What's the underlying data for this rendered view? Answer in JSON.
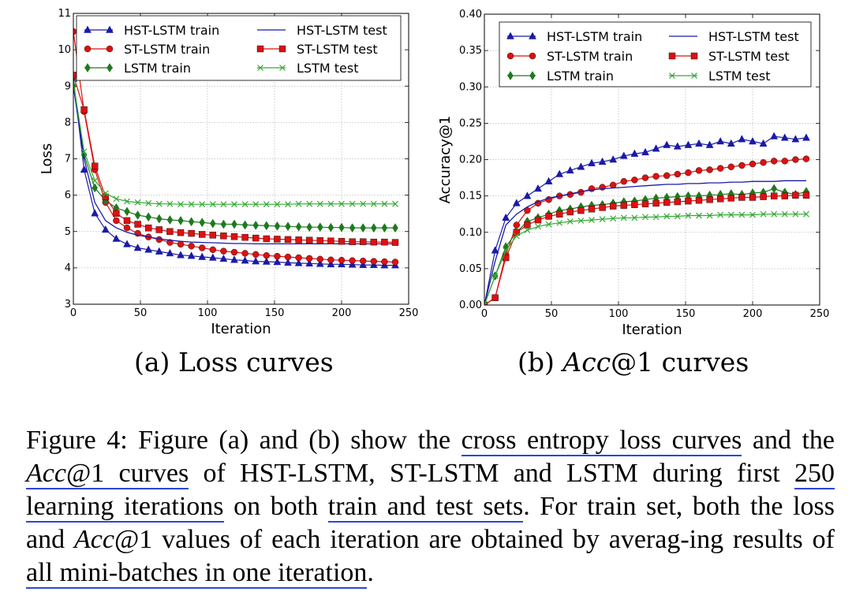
{
  "chart_data": [
    {
      "type": "line",
      "id": "loss",
      "title": "",
      "xlabel": "Iteration",
      "ylabel": "Loss",
      "xlim": [
        0,
        250
      ],
      "ylim": [
        3,
        11
      ],
      "xticks": [
        0,
        50,
        100,
        150,
        200,
        250
      ],
      "yticks": [
        3,
        4,
        5,
        6,
        7,
        8,
        9,
        10,
        11
      ],
      "grid": true,
      "legend_position": "top",
      "series": [
        {
          "name": "HST-LSTM train",
          "color": "#1a1aa8",
          "marker": "triangle",
          "line": "solid",
          "x": [
            0,
            8,
            16,
            24,
            32,
            40,
            48,
            56,
            64,
            72,
            80,
            88,
            96,
            104,
            112,
            120,
            128,
            136,
            144,
            152,
            160,
            168,
            176,
            184,
            192,
            200,
            208,
            216,
            224,
            232,
            240
          ],
          "y": [
            9.2,
            6.7,
            5.5,
            5.05,
            4.8,
            4.65,
            4.55,
            4.5,
            4.45,
            4.4,
            4.35,
            4.33,
            4.3,
            4.28,
            4.25,
            4.22,
            4.2,
            4.18,
            4.17,
            4.16,
            4.14,
            4.13,
            4.12,
            4.11,
            4.1,
            4.1,
            4.09,
            4.08,
            4.08,
            4.07,
            4.07
          ]
        },
        {
          "name": "ST-LSTM train",
          "color": "#dd1111",
          "marker": "circle",
          "line": "solid",
          "x": [
            0,
            8,
            16,
            24,
            32,
            40,
            48,
            56,
            64,
            72,
            80,
            88,
            96,
            104,
            112,
            120,
            128,
            136,
            144,
            152,
            160,
            168,
            176,
            184,
            192,
            200,
            208,
            216,
            224,
            232,
            240
          ],
          "y": [
            10.5,
            8.3,
            6.7,
            5.8,
            5.3,
            5.1,
            4.95,
            4.85,
            4.78,
            4.7,
            4.65,
            4.6,
            4.55,
            4.5,
            4.46,
            4.43,
            4.4,
            4.37,
            4.34,
            4.32,
            4.3,
            4.28,
            4.26,
            4.24,
            4.22,
            4.21,
            4.2,
            4.19,
            4.18,
            4.17,
            4.16
          ]
        },
        {
          "name": "LSTM train",
          "color": "#1e7a1e",
          "marker": "diamond",
          "line": "solid",
          "x": [
            0,
            8,
            16,
            24,
            32,
            40,
            48,
            56,
            64,
            72,
            80,
            88,
            96,
            104,
            112,
            120,
            128,
            136,
            144,
            152,
            160,
            168,
            176,
            184,
            192,
            200,
            208,
            216,
            224,
            232,
            240
          ],
          "y": [
            9.0,
            7.1,
            6.2,
            5.85,
            5.65,
            5.55,
            5.45,
            5.4,
            5.35,
            5.32,
            5.3,
            5.27,
            5.25,
            5.22,
            5.2,
            5.2,
            5.18,
            5.17,
            5.16,
            5.15,
            5.14,
            5.13,
            5.12,
            5.12,
            5.11,
            5.11,
            5.1,
            5.1,
            5.1,
            5.1,
            5.1
          ]
        },
        {
          "name": "HST-LSTM test",
          "color": "#1a1aa8",
          "marker": "none",
          "line": "solid",
          "x": [
            0,
            8,
            16,
            24,
            32,
            40,
            48,
            56,
            64,
            72,
            80,
            88,
            96,
            104,
            112,
            120,
            128,
            136,
            144,
            152,
            160,
            168,
            176,
            184,
            192,
            200,
            208,
            216,
            224,
            232,
            240
          ],
          "y": [
            9.0,
            7.0,
            5.8,
            5.3,
            5.1,
            4.98,
            4.9,
            4.85,
            4.8,
            4.76,
            4.73,
            4.71,
            4.7,
            4.69,
            4.68,
            4.67,
            4.67,
            4.66,
            4.66,
            4.66,
            4.66,
            4.66,
            4.66,
            4.66,
            4.66,
            4.66,
            4.66,
            4.66,
            4.66,
            4.66,
            4.66
          ]
        },
        {
          "name": "ST-LSTM test",
          "color": "#dd1111",
          "marker": "square",
          "line": "solid",
          "x": [
            0,
            8,
            16,
            24,
            32,
            40,
            48,
            56,
            64,
            72,
            80,
            88,
            96,
            104,
            112,
            120,
            128,
            136,
            144,
            152,
            160,
            168,
            176,
            184,
            192,
            200,
            208,
            216,
            224,
            232,
            240
          ],
          "y": [
            9.3,
            8.35,
            6.8,
            5.95,
            5.5,
            5.3,
            5.2,
            5.1,
            5.05,
            5.0,
            4.97,
            4.95,
            4.92,
            4.9,
            4.88,
            4.86,
            4.84,
            4.82,
            4.8,
            4.79,
            4.78,
            4.77,
            4.76,
            4.75,
            4.74,
            4.73,
            4.72,
            4.72,
            4.71,
            4.71,
            4.7
          ]
        },
        {
          "name": "LSTM test",
          "color": "#33aa33",
          "marker": "x",
          "line": "solid",
          "x": [
            0,
            8,
            16,
            24,
            32,
            40,
            48,
            56,
            64,
            72,
            80,
            88,
            96,
            104,
            112,
            120,
            128,
            136,
            144,
            152,
            160,
            168,
            176,
            184,
            192,
            200,
            208,
            216,
            224,
            232,
            240
          ],
          "y": [
            9.1,
            7.2,
            6.4,
            6.05,
            5.9,
            5.83,
            5.8,
            5.78,
            5.76,
            5.76,
            5.75,
            5.75,
            5.75,
            5.75,
            5.75,
            5.75,
            5.75,
            5.75,
            5.75,
            5.75,
            5.75,
            5.76,
            5.76,
            5.76,
            5.76,
            5.76,
            5.76,
            5.76,
            5.76,
            5.76,
            5.76
          ]
        }
      ]
    },
    {
      "type": "line",
      "id": "acc",
      "title": "",
      "xlabel": "Iteration",
      "ylabel": "Accuracy@1",
      "xlim": [
        0,
        250
      ],
      "ylim": [
        0,
        0.4
      ],
      "xticks": [
        0,
        50,
        100,
        150,
        200,
        250
      ],
      "yticks": [
        0.0,
        0.05,
        0.1,
        0.15,
        0.2,
        0.25,
        0.3,
        0.35,
        0.4
      ],
      "ytick_labels": [
        "0.00",
        "0.05",
        "0.10",
        "0.15",
        "0.20",
        "0.25",
        "0.30",
        "0.35",
        "0.40"
      ],
      "grid": true,
      "legend_position": "top",
      "series": [
        {
          "name": "HST-LSTM train",
          "color": "#1a1aa8",
          "marker": "triangle",
          "line": "solid",
          "x": [
            0,
            8,
            16,
            24,
            32,
            40,
            48,
            56,
            64,
            72,
            80,
            88,
            96,
            104,
            112,
            120,
            128,
            136,
            144,
            152,
            160,
            168,
            176,
            184,
            192,
            200,
            208,
            216,
            224,
            232,
            240
          ],
          "y": [
            0.0,
            0.075,
            0.12,
            0.14,
            0.15,
            0.16,
            0.17,
            0.18,
            0.185,
            0.19,
            0.195,
            0.197,
            0.2,
            0.205,
            0.208,
            0.21,
            0.215,
            0.22,
            0.218,
            0.22,
            0.222,
            0.22,
            0.225,
            0.222,
            0.228,
            0.225,
            0.222,
            0.232,
            0.23,
            0.228,
            0.23
          ]
        },
        {
          "name": "ST-LSTM train",
          "color": "#dd1111",
          "marker": "circle",
          "line": "solid",
          "x": [
            0,
            8,
            16,
            24,
            32,
            40,
            48,
            56,
            64,
            72,
            80,
            88,
            96,
            104,
            112,
            120,
            128,
            136,
            144,
            152,
            160,
            168,
            176,
            184,
            192,
            200,
            208,
            216,
            224,
            232,
            240
          ],
          "y": [
            0.0,
            0.01,
            0.07,
            0.11,
            0.13,
            0.14,
            0.145,
            0.15,
            0.152,
            0.155,
            0.16,
            0.162,
            0.165,
            0.17,
            0.172,
            0.175,
            0.177,
            0.178,
            0.18,
            0.182,
            0.185,
            0.186,
            0.188,
            0.19,
            0.192,
            0.194,
            0.196,
            0.198,
            0.198,
            0.2,
            0.201
          ]
        },
        {
          "name": "LSTM train",
          "color": "#1e7a1e",
          "marker": "diamond",
          "line": "solid",
          "x": [
            0,
            8,
            16,
            24,
            32,
            40,
            48,
            56,
            64,
            72,
            80,
            88,
            96,
            104,
            112,
            120,
            128,
            136,
            144,
            152,
            160,
            168,
            176,
            184,
            192,
            200,
            208,
            216,
            224,
            232,
            240
          ],
          "y": [
            0.0,
            0.04,
            0.08,
            0.1,
            0.115,
            0.12,
            0.125,
            0.13,
            0.132,
            0.135,
            0.137,
            0.138,
            0.14,
            0.142,
            0.143,
            0.145,
            0.147,
            0.148,
            0.149,
            0.15,
            0.15,
            0.151,
            0.152,
            0.153,
            0.152,
            0.154,
            0.155,
            0.16,
            0.155,
            0.152,
            0.156
          ]
        },
        {
          "name": "HST-LSTM test",
          "color": "#1a1aa8",
          "marker": "none",
          "line": "solid",
          "x": [
            0,
            8,
            16,
            24,
            32,
            40,
            48,
            56,
            64,
            72,
            80,
            88,
            96,
            104,
            112,
            120,
            128,
            136,
            144,
            152,
            160,
            168,
            176,
            184,
            192,
            200,
            208,
            216,
            224,
            232,
            240
          ],
          "y": [
            0.0,
            0.06,
            0.11,
            0.125,
            0.135,
            0.142,
            0.147,
            0.15,
            0.153,
            0.156,
            0.158,
            0.16,
            0.161,
            0.162,
            0.163,
            0.164,
            0.165,
            0.166,
            0.166,
            0.167,
            0.167,
            0.168,
            0.168,
            0.169,
            0.169,
            0.17,
            0.17,
            0.17,
            0.171,
            0.171,
            0.171
          ]
        },
        {
          "name": "ST-LSTM test",
          "color": "#dd1111",
          "marker": "square",
          "line": "solid",
          "x": [
            0,
            8,
            16,
            24,
            32,
            40,
            48,
            56,
            64,
            72,
            80,
            88,
            96,
            104,
            112,
            120,
            128,
            136,
            144,
            152,
            160,
            168,
            176,
            184,
            192,
            200,
            208,
            216,
            224,
            232,
            240
          ],
          "y": [
            0.0,
            0.01,
            0.065,
            0.1,
            0.11,
            0.117,
            0.122,
            0.125,
            0.128,
            0.13,
            0.132,
            0.134,
            0.136,
            0.137,
            0.138,
            0.139,
            0.14,
            0.141,
            0.142,
            0.143,
            0.144,
            0.145,
            0.146,
            0.147,
            0.148,
            0.148,
            0.149,
            0.15,
            0.15,
            0.151,
            0.151
          ]
        },
        {
          "name": "LSTM test",
          "color": "#33aa33",
          "marker": "x",
          "line": "solid",
          "x": [
            0,
            8,
            16,
            24,
            32,
            40,
            48,
            56,
            64,
            72,
            80,
            88,
            96,
            104,
            112,
            120,
            128,
            136,
            144,
            152,
            160,
            168,
            176,
            184,
            192,
            200,
            208,
            216,
            224,
            232,
            240
          ],
          "y": [
            0.0,
            0.04,
            0.075,
            0.095,
            0.103,
            0.108,
            0.111,
            0.113,
            0.115,
            0.116,
            0.117,
            0.118,
            0.119,
            0.12,
            0.12,
            0.121,
            0.121,
            0.122,
            0.122,
            0.123,
            0.123,
            0.123,
            0.124,
            0.124,
            0.124,
            0.124,
            0.125,
            0.125,
            0.125,
            0.125,
            0.125
          ]
        }
      ]
    }
  ],
  "subcaptions": {
    "a_prefix": "(a)",
    "a_text": "Loss curves",
    "b_prefix": "(b)",
    "b_italic": "Acc",
    "b_text": "@1 curves"
  },
  "caption": {
    "p1": "Figure 4: Figure (a) and (b) show the ",
    "u1": "cross entropy loss curves",
    "p2": " and the ",
    "u2_italic": "Acc",
    "u2_rest": "@1 curves",
    "p3": " of HST-LSTM, ST-LSTM and LSTM during first ",
    "u3": "250 learning iterations",
    "p4": " on both ",
    "u4": "train and test sets",
    "p5": ". For train set, both the loss and ",
    "p5_italic": "Acc",
    "p6": "@1 values of each iteration are obtained by averag-ing results of ",
    "u5": "all mini-batches in one iteration",
    "p7": "."
  }
}
